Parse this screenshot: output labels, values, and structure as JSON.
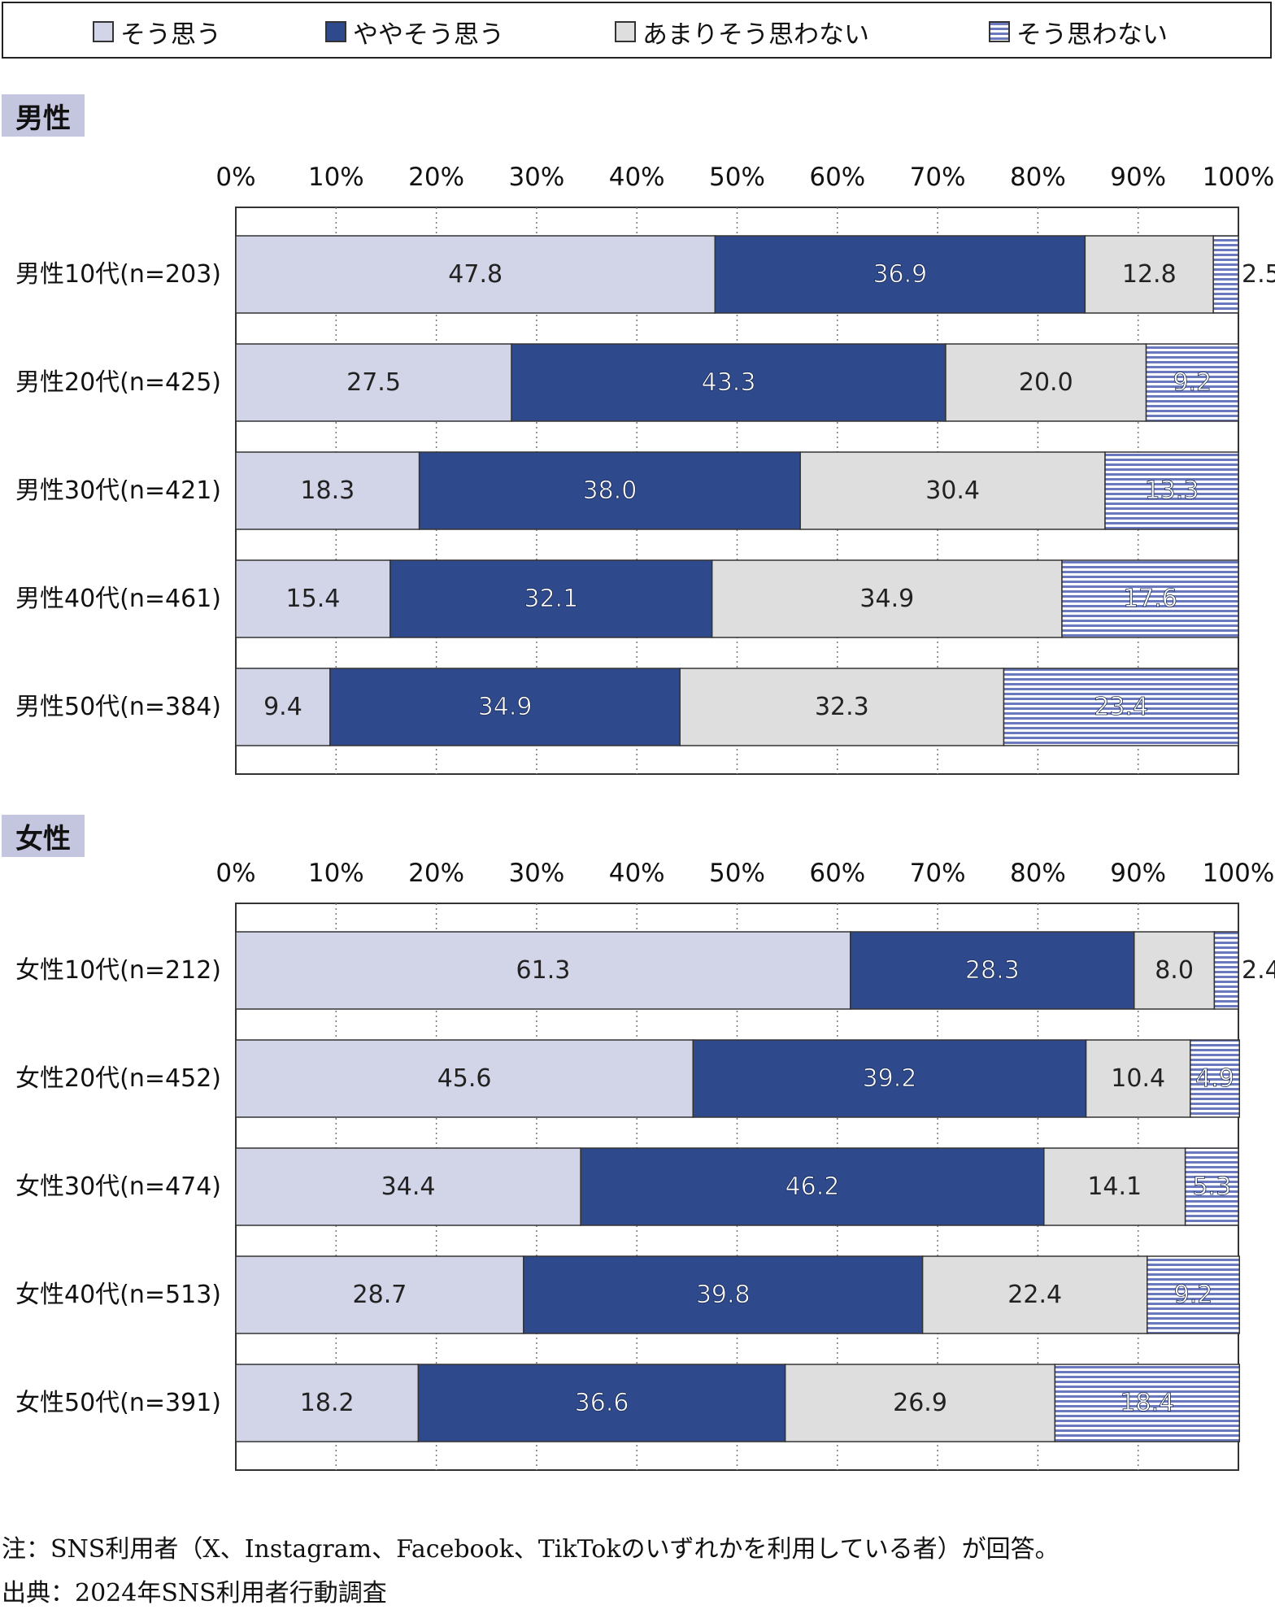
{
  "legend": [
    {
      "label": "そう思う",
      "color": "#d2d4e8",
      "pattern": "solid"
    },
    {
      "label": "ややそう思う",
      "color": "#2e4a8c",
      "pattern": "solid"
    },
    {
      "label": "あまりそう思わない",
      "color": "#dedede",
      "pattern": "solid"
    },
    {
      "label": "そう思わない",
      "color": "#6a78bd",
      "pattern": "stripes"
    }
  ],
  "sections": {
    "male": {
      "label": "男性"
    },
    "female": {
      "label": "女性"
    }
  },
  "chart_data": [
    {
      "type": "bar",
      "orientation": "horizontal",
      "stacked": true,
      "xlim": [
        0,
        100
      ],
      "x_ticks": [
        "0%",
        "10%",
        "20%",
        "30%",
        "40%",
        "50%",
        "60%",
        "70%",
        "80%",
        "90%",
        "100%"
      ],
      "grid": "vertical dotted",
      "categories": [
        "男性10代(n=203)",
        "男性20代(n=425)",
        "男性30代(n=421)",
        "男性40代(n=461)",
        "男性50代(n=384)"
      ],
      "series": [
        {
          "name": "そう思う",
          "values": [
            47.8,
            27.5,
            18.3,
            15.4,
            9.4
          ]
        },
        {
          "name": "ややそう思う",
          "values": [
            36.9,
            43.3,
            38.0,
            32.1,
            34.9
          ]
        },
        {
          "name": "あまりそう思わない",
          "values": [
            12.8,
            20.0,
            30.4,
            34.9,
            32.3
          ]
        },
        {
          "name": "そう思わない",
          "values": [
            2.5,
            9.2,
            13.3,
            17.6,
            23.4
          ]
        }
      ],
      "value_labels": [
        [
          "47.8",
          "36.9",
          "12.8",
          "2.5"
        ],
        [
          "27.5",
          "43.3",
          "20.0",
          "9.2"
        ],
        [
          "18.3",
          "38.0",
          "30.4",
          "13.3"
        ],
        [
          "15.4",
          "32.1",
          "34.9",
          "17.6"
        ],
        [
          "9.4",
          "34.9",
          "32.3",
          "23.4"
        ]
      ]
    },
    {
      "type": "bar",
      "orientation": "horizontal",
      "stacked": true,
      "xlim": [
        0,
        100
      ],
      "x_ticks": [
        "0%",
        "10%",
        "20%",
        "30%",
        "40%",
        "50%",
        "60%",
        "70%",
        "80%",
        "90%",
        "100%"
      ],
      "grid": "vertical dotted",
      "categories": [
        "女性10代(n=212)",
        "女性20代(n=452)",
        "女性30代(n=474)",
        "女性40代(n=513)",
        "女性50代(n=391)"
      ],
      "series": [
        {
          "name": "そう思う",
          "values": [
            61.3,
            45.6,
            34.4,
            28.7,
            18.2
          ]
        },
        {
          "name": "ややそう思う",
          "values": [
            28.3,
            39.2,
            46.2,
            39.8,
            36.6
          ]
        },
        {
          "name": "あまりそう思わない",
          "values": [
            8.0,
            10.4,
            14.1,
            22.4,
            26.9
          ]
        },
        {
          "name": "そう思わない",
          "values": [
            2.4,
            4.9,
            5.3,
            9.2,
            18.4
          ]
        }
      ],
      "value_labels": [
        [
          "61.3",
          "28.3",
          "8.0",
          "2.4"
        ],
        [
          "45.6",
          "39.2",
          "10.4",
          "4.9"
        ],
        [
          "34.4",
          "46.2",
          "14.1",
          "5.3"
        ],
        [
          "28.7",
          "39.8",
          "22.4",
          "9.2"
        ],
        [
          "18.2",
          "36.6",
          "26.9",
          "18.4"
        ]
      ]
    }
  ],
  "footnotes": {
    "note": "注：SNS利用者（X、Instagram、Facebook、TikTokのいずれかを利用している者）が回答。",
    "source": "出典：2024年SNS利用者行動調査"
  }
}
